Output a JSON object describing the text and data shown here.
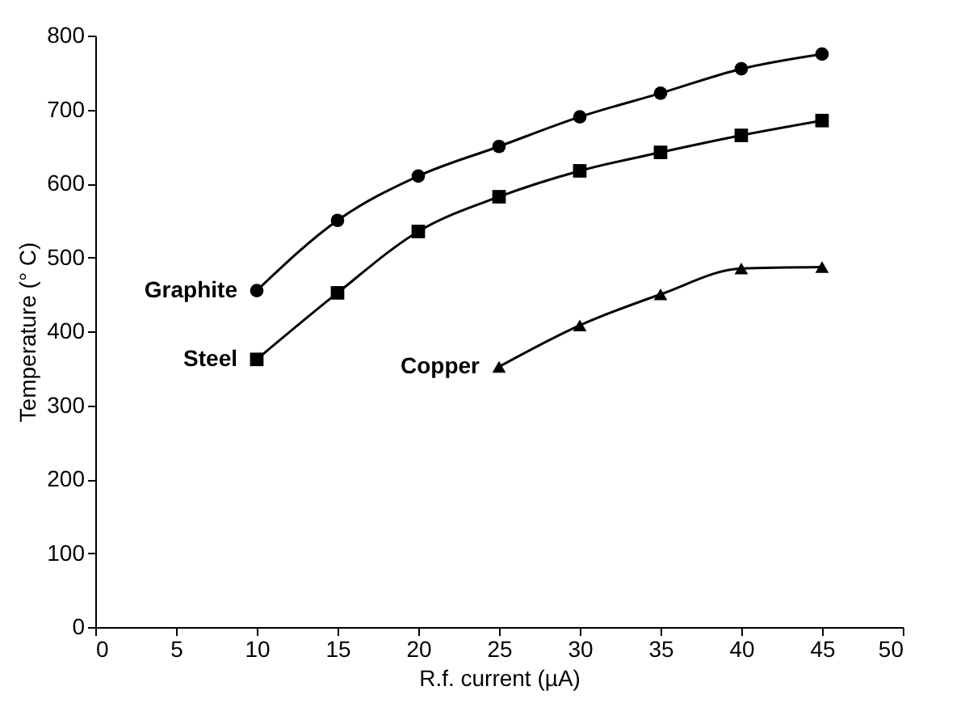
{
  "chart_data": {
    "type": "line",
    "xlabel": "R.f. current (µA)",
    "ylabel": "Temperature (° C)",
    "xlim": [
      0,
      50
    ],
    "xticks": [
      0,
      5,
      10,
      15,
      20,
      25,
      30,
      35,
      40,
      45,
      50
    ],
    "ylim": [
      0,
      800
    ],
    "yticks": [
      0,
      100,
      200,
      300,
      400,
      500,
      600,
      700,
      800
    ],
    "grid": false,
    "legend": false,
    "series": [
      {
        "name": "Graphite",
        "color": "#000000",
        "marker": "circle",
        "x": [
          10,
          15,
          20,
          25,
          30,
          35,
          40,
          45
        ],
        "values": [
          455,
          550,
          610,
          650,
          690,
          722,
          755,
          775
        ]
      },
      {
        "name": "Steel",
        "color": "#000000",
        "marker": "square",
        "x": [
          10,
          15,
          20,
          25,
          30,
          35,
          40,
          45
        ],
        "values": [
          362,
          452,
          535,
          582,
          617,
          642,
          665,
          685
        ]
      },
      {
        "name": "Copper",
        "color": "#000000",
        "marker": "triangle",
        "x": [
          25,
          30,
          35,
          40,
          45
        ],
        "values": [
          352,
          408,
          450,
          485,
          487
        ]
      }
    ]
  }
}
